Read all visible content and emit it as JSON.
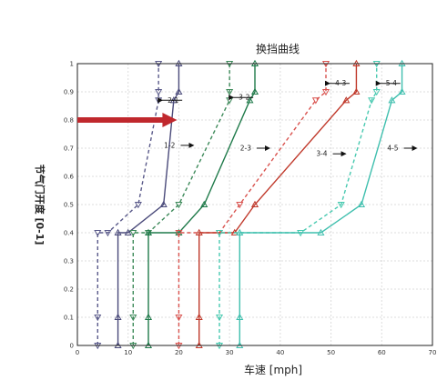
{
  "chart_data": {
    "type": "line",
    "title": "换挡曲线",
    "xlabel": "车速 [mph]",
    "ylabel": "节气门开度 [0-1]",
    "xlim": [
      0,
      70
    ],
    "ylim": [
      0,
      1
    ],
    "x_ticks": [
      "0",
      "10",
      "20",
      "30",
      "40",
      "50",
      "60",
      "70"
    ],
    "y_ticks": [
      "0",
      "0.1",
      "0.2",
      "0.3",
      "0.4",
      "0.5",
      "0.6",
      "0.7",
      "0.8",
      "0.9",
      "1"
    ],
    "grid": true,
    "series": [
      {
        "name": "2-1",
        "color": "#5a5a8a",
        "dashed": true,
        "marker": "down",
        "x": [
          4,
          4,
          4,
          6,
          12,
          16,
          16,
          16
        ],
        "y": [
          0,
          0.1,
          0.4,
          0.4,
          0.5,
          0.87,
          0.9,
          1
        ]
      },
      {
        "name": "1-2",
        "color": "#4a4a7a",
        "dashed": false,
        "marker": "up",
        "x": [
          8,
          8,
          8,
          10,
          17,
          19,
          20,
          20
        ],
        "y": [
          0,
          0.1,
          0.4,
          0.4,
          0.5,
          0.87,
          0.9,
          1
        ]
      },
      {
        "name": "3-2",
        "color": "#3d8a5a",
        "dashed": true,
        "marker": "down",
        "x": [
          11,
          11,
          11,
          14,
          20,
          30,
          30,
          30
        ],
        "y": [
          0,
          0.1,
          0.4,
          0.4,
          0.5,
          0.87,
          0.9,
          1
        ]
      },
      {
        "name": "2-3",
        "color": "#1f7a4a",
        "dashed": false,
        "marker": "up",
        "x": [
          14,
          14,
          14,
          20,
          25,
          34,
          35,
          35
        ],
        "y": [
          0,
          0.1,
          0.4,
          0.4,
          0.5,
          0.87,
          0.9,
          1
        ]
      },
      {
        "name": "4-3",
        "color": "#d9534f",
        "dashed": true,
        "marker": "down",
        "x": [
          20,
          20,
          20,
          28,
          32,
          47,
          49,
          49
        ],
        "y": [
          0,
          0.1,
          0.4,
          0.4,
          0.5,
          0.87,
          0.9,
          1
        ]
      },
      {
        "name": "3-4",
        "color": "#c0392b",
        "dashed": false,
        "marker": "up",
        "x": [
          24,
          24,
          24,
          31,
          35,
          53,
          55,
          55
        ],
        "y": [
          0,
          0.1,
          0.4,
          0.4,
          0.5,
          0.87,
          0.9,
          1
        ]
      },
      {
        "name": "5-4",
        "color": "#48c9b0",
        "dashed": true,
        "marker": "down",
        "x": [
          28,
          28,
          28,
          44,
          52,
          58,
          59,
          59
        ],
        "y": [
          0,
          0.1,
          0.4,
          0.4,
          0.5,
          0.87,
          0.9,
          1
        ]
      },
      {
        "name": "4-5",
        "color": "#3fbfae",
        "dashed": false,
        "marker": "up",
        "x": [
          32,
          32,
          32,
          48,
          56,
          62,
          64,
          64
        ],
        "y": [
          0,
          0.1,
          0.4,
          0.4,
          0.5,
          0.87,
          0.9,
          1
        ]
      }
    ],
    "annotations": [
      {
        "text": "2-1",
        "x": 16,
        "y": 0.87
      },
      {
        "text": "3-2",
        "x": 30,
        "y": 0.88
      },
      {
        "text": "4-3",
        "x": 49,
        "y": 0.93
      },
      {
        "text": "5-4",
        "x": 59,
        "y": 0.93
      },
      {
        "text": "1-2",
        "x": 20,
        "y": 0.71
      },
      {
        "text": "2-3",
        "x": 35,
        "y": 0.7
      },
      {
        "text": "3-4",
        "x": 50,
        "y": 0.68
      },
      {
        "text": "4-5",
        "x": 64,
        "y": 0.7
      }
    ],
    "highlight_arrow": {
      "color": "#c0282d",
      "y": 0.8,
      "x_end": 20
    }
  }
}
